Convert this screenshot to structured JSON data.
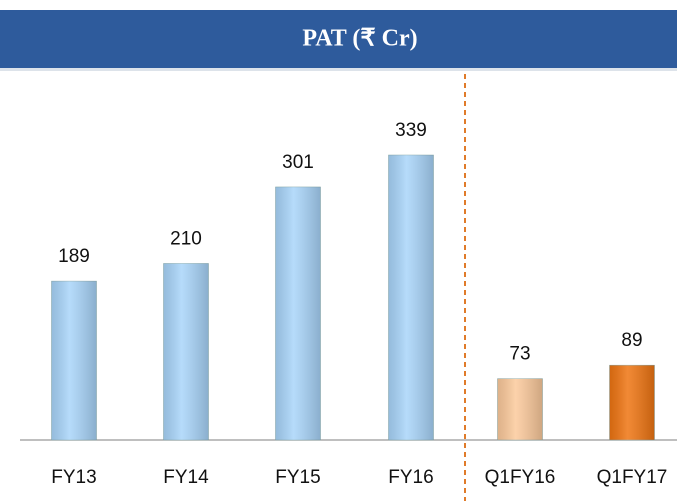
{
  "chart_data": {
    "type": "bar",
    "title": "PAT (₹ Cr)",
    "categories": [
      "FY13",
      "FY14",
      "FY15",
      "FY16",
      "Q1FY16",
      "Q1FY17"
    ],
    "values": [
      189,
      210,
      301,
      339,
      73,
      89
    ],
    "colors": [
      "#a9d5fa",
      "#a9d5fa",
      "#a9d5fa",
      "#a9d5fa",
      "#fcca9c",
      "#ef7512"
    ]
  }
}
